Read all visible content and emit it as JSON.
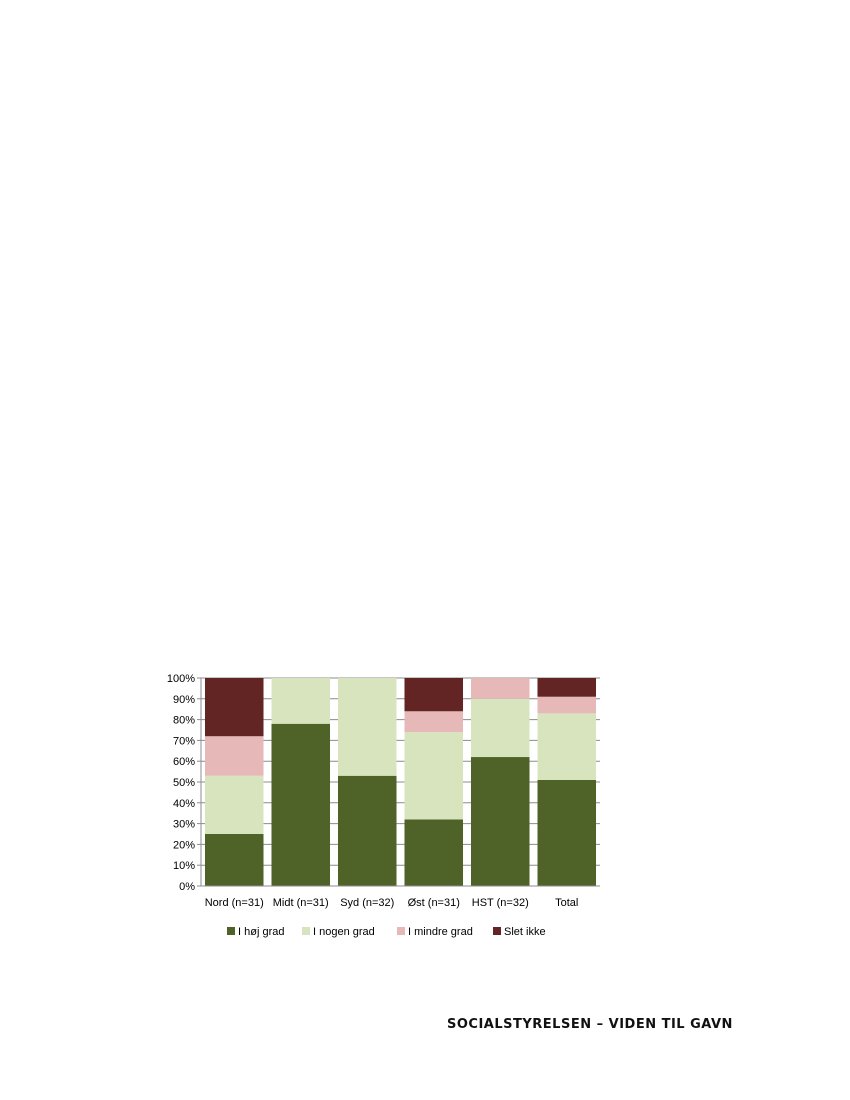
{
  "chart_data": {
    "type": "bar",
    "stacked": true,
    "title": "",
    "xlabel": "",
    "ylabel": "",
    "ylim": [
      0,
      100
    ],
    "y_ticks": [
      "0%",
      "10%",
      "20%",
      "30%",
      "40%",
      "50%",
      "60%",
      "70%",
      "80%",
      "90%",
      "100%"
    ],
    "grid": true,
    "legend_position": "bottom",
    "categories": [
      "Nord (n=31)",
      "Midt (n=31)",
      "Syd (n=32)",
      "Øst (n=31)",
      "HST (n=32)",
      "Total"
    ],
    "series": [
      {
        "name": "I høj grad",
        "color": "#4f6228",
        "values": [
          25,
          78,
          53,
          32,
          62,
          51
        ]
      },
      {
        "name": "I nogen grad",
        "color": "#d7e4bd",
        "values": [
          28,
          22,
          47,
          42,
          28,
          32
        ]
      },
      {
        "name": "I mindre grad",
        "color": "#e6b9b8",
        "values": [
          19,
          0,
          0,
          10,
          10,
          8
        ]
      },
      {
        "name": "Slet ikke",
        "color": "#632523",
        "values": [
          28,
          0,
          0,
          16,
          0,
          9
        ]
      }
    ]
  },
  "footer": {
    "text": "SOCIALSTYRELSEN – VIDEN TIL GAVN"
  }
}
